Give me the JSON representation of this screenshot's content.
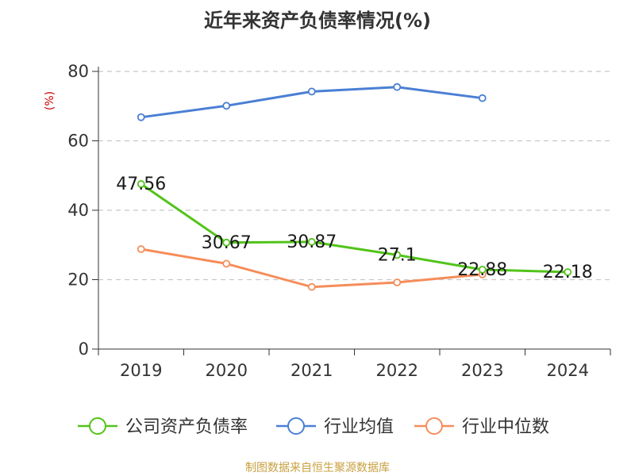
{
  "chart_data": {
    "type": "line",
    "title": "近年来资产负债率情况(%)",
    "ylabel": "(%)",
    "xlabel": "",
    "categories": [
      "2019",
      "2020",
      "2021",
      "2022",
      "2023",
      "2024"
    ],
    "ylim": [
      0,
      80
    ],
    "yticks": [
      0,
      20,
      40,
      60,
      80
    ],
    "grid": true,
    "legend_position": "bottom",
    "series": [
      {
        "name": "公司资产负债率",
        "color": "#52c41a",
        "values": [
          47.56,
          30.67,
          30.87,
          27.1,
          22.88,
          22.18
        ],
        "labels": [
          "47.56",
          "30.67",
          "30.87",
          "27.1",
          "22.88",
          "22.18"
        ]
      },
      {
        "name": "行业均值",
        "color": "#4a7fd4",
        "values": [
          66.8,
          70.1,
          74.2,
          75.5,
          72.3,
          null
        ],
        "labels": null
      },
      {
        "name": "行业中位数",
        "color": "#f58d5a",
        "values": [
          28.8,
          24.6,
          17.9,
          19.2,
          21.5,
          null
        ],
        "labels": null
      }
    ]
  },
  "footer": {
    "source": "制图数据来自恒生聚源数据库"
  }
}
